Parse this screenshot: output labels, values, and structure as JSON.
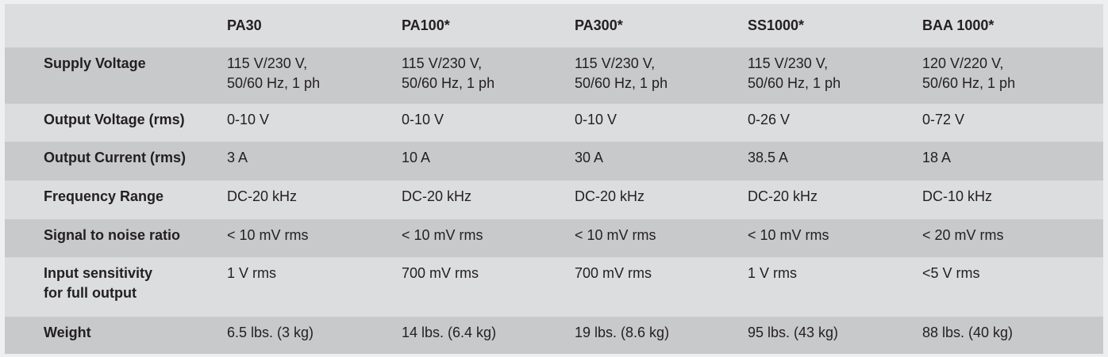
{
  "table": {
    "columns": [
      "PA30",
      "PA100*",
      "PA300*",
      "SS1000*",
      "BAA 1000*"
    ],
    "rows": [
      {
        "label": "Supply Voltage",
        "cells": [
          "115 V/230 V,\n50/60 Hz, 1 ph",
          "115 V/230 V,\n50/60 Hz, 1 ph",
          "115 V/230 V,\n50/60 Hz, 1 ph",
          "115 V/230 V,\n50/60 Hz, 1 ph",
          "120 V/220 V,\n50/60 Hz, 1 ph"
        ]
      },
      {
        "label": "Output Voltage (rms)",
        "cells": [
          "0-10 V",
          "0-10 V",
          "0-10 V",
          "0-26 V",
          "0-72 V"
        ]
      },
      {
        "label": "Output Current (rms)",
        "cells": [
          "3 A",
          "10 A",
          "30 A",
          "38.5 A",
          "18 A"
        ]
      },
      {
        "label": "Frequency Range",
        "cells": [
          "DC-20 kHz",
          "DC-20 kHz",
          "DC-20 kHz",
          "DC-20 kHz",
          "DC-10 kHz"
        ]
      },
      {
        "label": "Signal to noise ratio",
        "cells": [
          "< 10 mV rms",
          "< 10 mV rms",
          "< 10 mV rms",
          "< 10 mV rms",
          "< 20 mV rms"
        ]
      },
      {
        "label": "Input sensitivity\nfor full output",
        "cells": [
          "1 V rms",
          "700 mV rms",
          "700 mV rms",
          "1 V rms",
          "<5 V rms"
        ]
      },
      {
        "label": "Weight",
        "cells": [
          "6.5 lbs. (3 kg)",
          "14 lbs. (6.4 kg)",
          "19 lbs. (8.6 kg)",
          "95 lbs. (43 kg)",
          "88 lbs. (40 kg)"
        ]
      }
    ]
  }
}
